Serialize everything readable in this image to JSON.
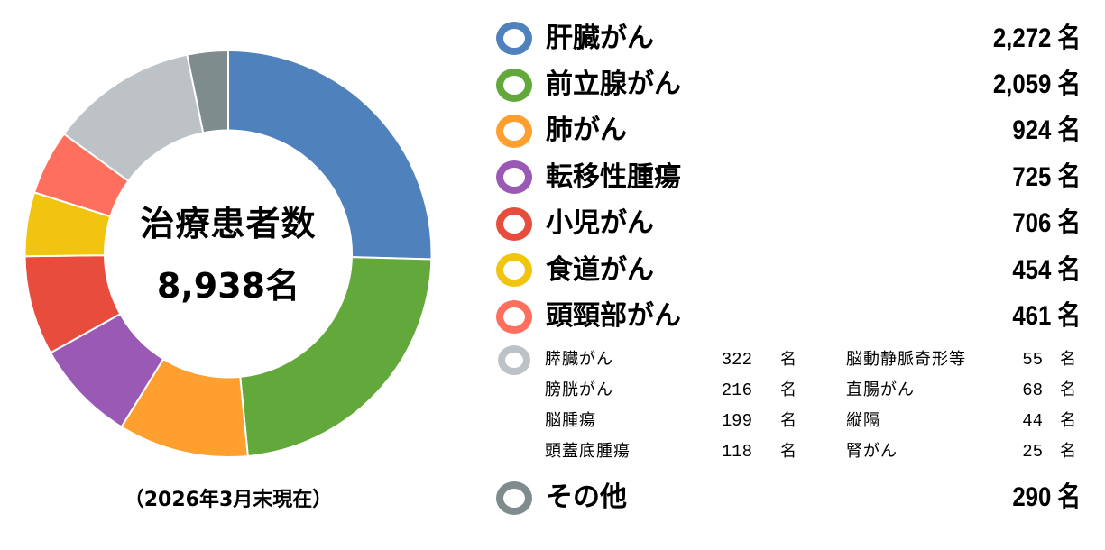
{
  "chart_data": {
    "type": "pie",
    "variant": "donut",
    "title": "治療患者数",
    "total_label": "8,938名",
    "total": 8938,
    "unit": "名",
    "footnote": "（2026年3月末現在）",
    "start_angle_deg": 0,
    "direction": "clockwise",
    "categories": [
      "肝臓がん",
      "前立腺がん",
      "肺がん",
      "転移性腫瘍",
      "小児がん",
      "食道がん",
      "頭頸部がん",
      "その他の部位（膵臓がん等）",
      "その他"
    ],
    "values": [
      2272,
      2059,
      924,
      725,
      706,
      454,
      461,
      1047,
      290
    ],
    "colors": [
      "#4F81BD",
      "#62A83A",
      "#FF9F2F",
      "#9A59B5",
      "#E74C3C",
      "#F1C40F",
      "#FF6F5E",
      "#BDC2C6",
      "#7F8C8D"
    ],
    "legend_position": "right"
  },
  "center": {
    "title": "治療患者数",
    "total": "8,938名"
  },
  "footnote": "（2026年3月末現在）",
  "legend": {
    "main": [
      {
        "label": "肝臓がん",
        "value": "2,272",
        "unit": "名",
        "color": "#4F81BD"
      },
      {
        "label": "前立腺がん",
        "value": "2,059",
        "unit": "名",
        "color": "#62A83A"
      },
      {
        "label": "肺がん",
        "value": "924",
        "unit": "名",
        "color": "#FF9F2F"
      },
      {
        "label": "転移性腫瘍",
        "value": "725",
        "unit": "名",
        "color": "#9A59B5"
      },
      {
        "label": "小児がん",
        "value": "706",
        "unit": "名",
        "color": "#E74C3C"
      },
      {
        "label": "食道がん",
        "value": "454",
        "unit": "名",
        "color": "#F1C40F"
      },
      {
        "label": "頭頸部がん",
        "value": "461",
        "unit": "名",
        "color": "#FF6F5E"
      }
    ],
    "sub": {
      "color": "#BDC2C6",
      "left": [
        {
          "label": "膵臓がん",
          "value": "322",
          "unit": "名"
        },
        {
          "label": "膀胱がん",
          "value": "216",
          "unit": "名"
        },
        {
          "label": "脳腫瘍",
          "value": "199",
          "unit": "名"
        },
        {
          "label": "頭蓋底腫瘍",
          "value": "118",
          "unit": "名"
        }
      ],
      "right": [
        {
          "label": "脳動静脈奇形等",
          "value": "55",
          "unit": "名"
        },
        {
          "label": "直腸がん",
          "value": "68",
          "unit": "名"
        },
        {
          "label": "縦隔",
          "value": "44",
          "unit": "名"
        },
        {
          "label": "腎がん",
          "value": "25",
          "unit": "名"
        }
      ]
    },
    "other": {
      "label": "その他",
      "value": "290",
      "unit": "名",
      "color": "#7F8C8D"
    }
  }
}
